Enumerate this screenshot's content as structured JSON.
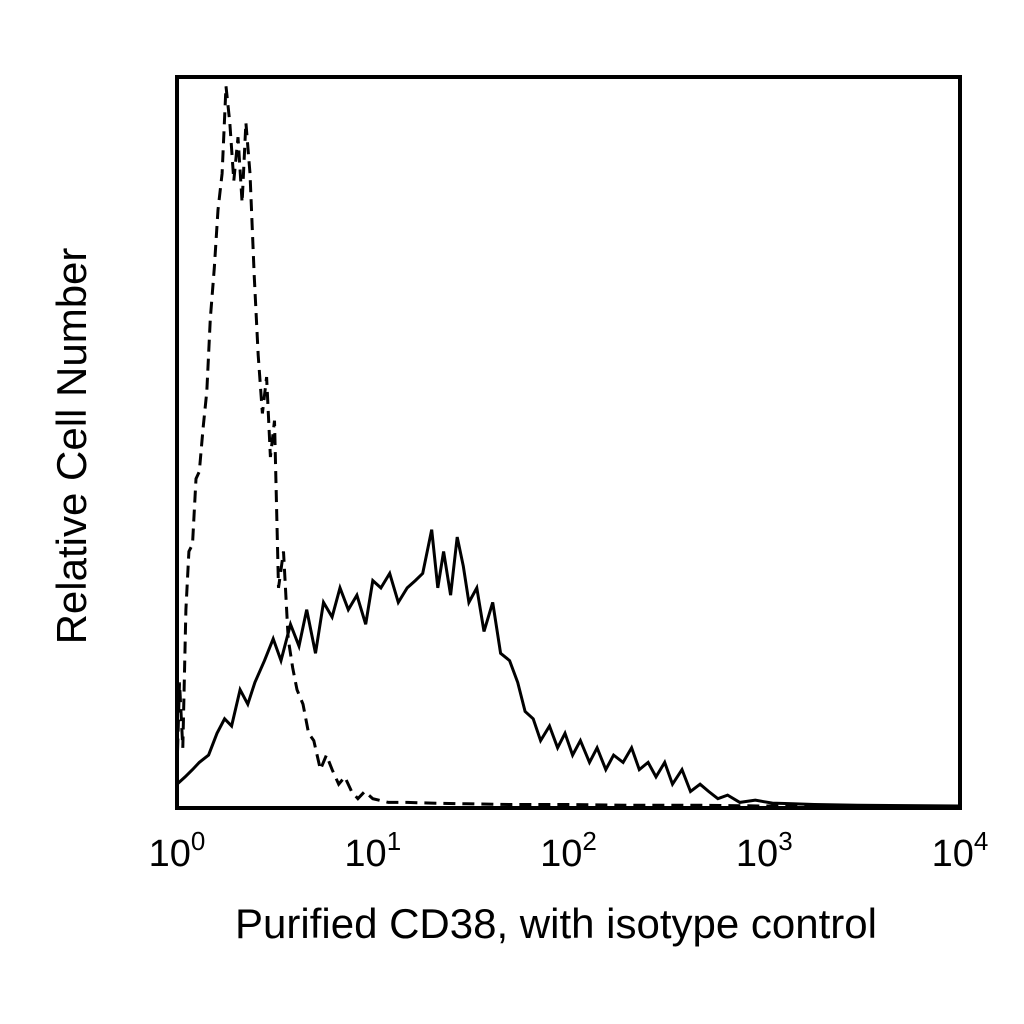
{
  "chart_data": {
    "type": "line",
    "title": "",
    "xlabel": "Purified CD38, with isotype control",
    "ylabel": "Relative Cell Number",
    "x_scale": "log10",
    "xlim": [
      1,
      10000
    ],
    "ylim": [
      0,
      1
    ],
    "grid": false,
    "x_ticks": [
      {
        "base": "10",
        "exp": "0",
        "value": 1
      },
      {
        "base": "10",
        "exp": "1",
        "value": 10
      },
      {
        "base": "10",
        "exp": "2",
        "value": 100
      },
      {
        "base": "10",
        "exp": "3",
        "value": 1000
      },
      {
        "base": "10",
        "exp": "4",
        "value": 10000
      }
    ],
    "series": [
      {
        "style": "dashed",
        "color": "#000000",
        "x": [
          1.0,
          1.03,
          1.07,
          1.11,
          1.15,
          1.2,
          1.25,
          1.3,
          1.36,
          1.42,
          1.48,
          1.55,
          1.62,
          1.7,
          1.78,
          1.86,
          1.95,
          2.05,
          2.15,
          2.25,
          2.36,
          2.48,
          2.6,
          2.73,
          2.87,
          3.0,
          3.15,
          3.3,
          3.5,
          3.7,
          3.9,
          4.1,
          4.4,
          4.7,
          5.0,
          5.4,
          5.8,
          6.2,
          6.7,
          7.2,
          7.8,
          8.4,
          9.1,
          10,
          12,
          15,
          20,
          30,
          50,
          100,
          200,
          500,
          1000,
          10000
        ],
        "y": [
          0.05,
          0.17,
          0.08,
          0.27,
          0.35,
          0.36,
          0.45,
          0.46,
          0.52,
          0.57,
          0.67,
          0.74,
          0.82,
          0.87,
          0.99,
          0.94,
          0.86,
          0.92,
          0.83,
          0.94,
          0.87,
          0.73,
          0.62,
          0.54,
          0.59,
          0.48,
          0.53,
          0.3,
          0.35,
          0.23,
          0.19,
          0.16,
          0.14,
          0.1,
          0.09,
          0.05,
          0.07,
          0.05,
          0.03,
          0.04,
          0.02,
          0.01,
          0.02,
          0.01,
          0.005,
          0.005,
          0.004,
          0.003,
          0.002,
          0.002,
          0.001,
          0.001,
          0.0,
          0.0
        ]
      },
      {
        "style": "solid",
        "color": "#000000",
        "x": [
          1.0,
          1.1,
          1.2,
          1.3,
          1.45,
          1.6,
          1.75,
          1.9,
          2.1,
          2.3,
          2.5,
          2.8,
          3.1,
          3.4,
          3.8,
          4.2,
          4.6,
          5.1,
          5.6,
          6.2,
          6.8,
          7.5,
          8.3,
          9.2,
          10,
          11,
          12.2,
          13.5,
          15,
          16.5,
          18,
          20,
          21.5,
          23,
          25,
          27,
          29,
          31,
          34,
          37,
          41,
          45,
          50,
          55,
          60,
          66,
          72,
          80,
          88,
          96,
          105,
          115,
          128,
          140,
          155,
          170,
          190,
          210,
          230,
          255,
          280,
          310,
          340,
          380,
          420,
          470,
          520,
          580,
          650,
          750,
          900,
          1100,
          1400,
          1800,
          3000,
          10000
        ],
        "y": [
          0.03,
          0.04,
          0.05,
          0.06,
          0.07,
          0.1,
          0.12,
          0.11,
          0.16,
          0.14,
          0.17,
          0.2,
          0.23,
          0.2,
          0.25,
          0.22,
          0.27,
          0.21,
          0.28,
          0.26,
          0.3,
          0.27,
          0.29,
          0.25,
          0.31,
          0.3,
          0.32,
          0.28,
          0.3,
          0.31,
          0.32,
          0.38,
          0.3,
          0.35,
          0.29,
          0.37,
          0.33,
          0.28,
          0.3,
          0.24,
          0.28,
          0.21,
          0.2,
          0.17,
          0.13,
          0.12,
          0.09,
          0.11,
          0.08,
          0.1,
          0.07,
          0.09,
          0.06,
          0.08,
          0.05,
          0.07,
          0.06,
          0.08,
          0.05,
          0.06,
          0.04,
          0.06,
          0.03,
          0.05,
          0.02,
          0.03,
          0.02,
          0.01,
          0.015,
          0.005,
          0.008,
          0.004,
          0.003,
          0.002,
          0.001,
          0.0
        ]
      }
    ]
  }
}
